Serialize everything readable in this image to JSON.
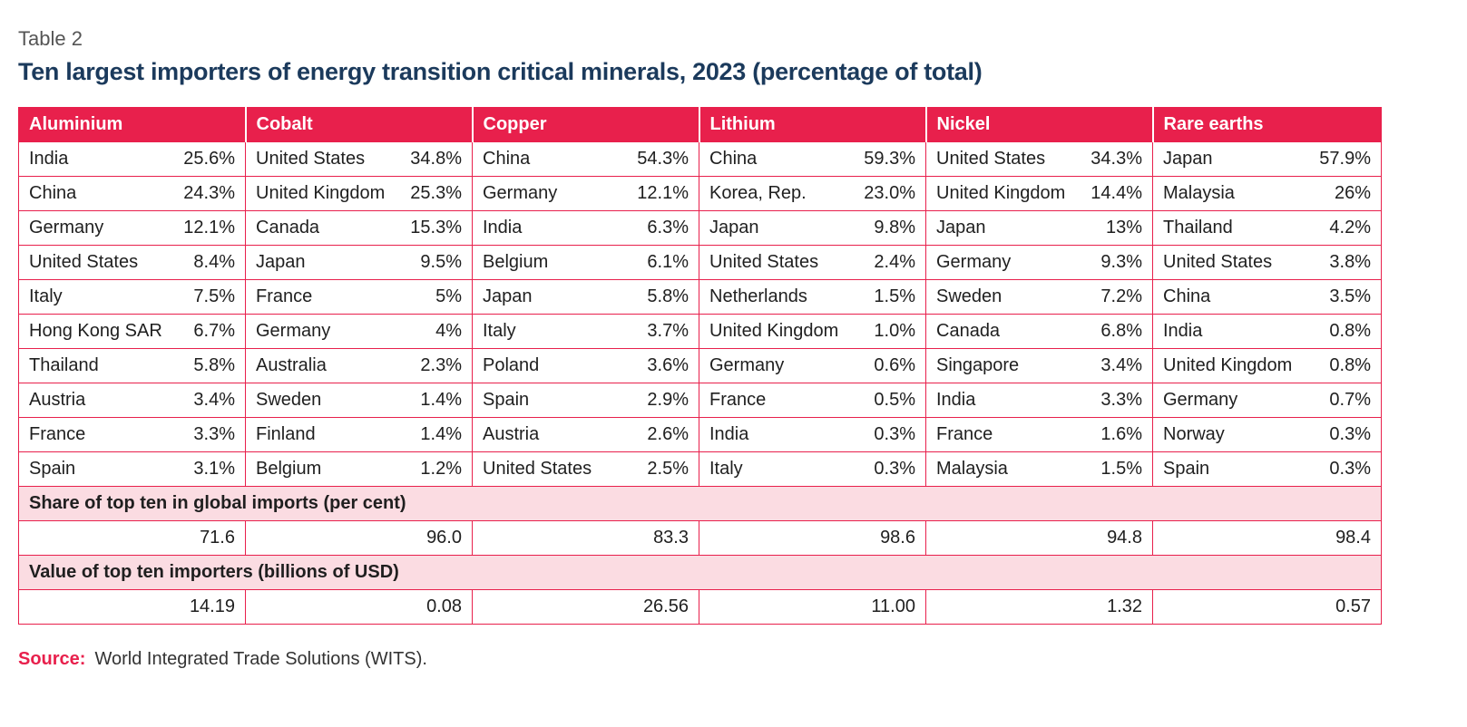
{
  "label": "Table 2",
  "title": "Ten largest importers of energy transition critical minerals, 2023 (percentage of total)",
  "columns": [
    "Aluminium",
    "Cobalt",
    "Copper",
    "Lithium",
    "Nickel",
    "Rare earths"
  ],
  "rows": [
    [
      [
        "India",
        "25.6%"
      ],
      [
        "United States",
        "34.8%"
      ],
      [
        "China",
        "54.3%"
      ],
      [
        "China",
        "59.3%"
      ],
      [
        "United States",
        "34.3%"
      ],
      [
        "Japan",
        "57.9%"
      ]
    ],
    [
      [
        "China",
        "24.3%"
      ],
      [
        "United Kingdom",
        "25.3%"
      ],
      [
        "Germany",
        "12.1%"
      ],
      [
        "Korea, Rep.",
        "23.0%"
      ],
      [
        "United Kingdom",
        "14.4%"
      ],
      [
        "Malaysia",
        "26%"
      ]
    ],
    [
      [
        "Germany",
        "12.1%"
      ],
      [
        "Canada",
        "15.3%"
      ],
      [
        "India",
        "6.3%"
      ],
      [
        "Japan",
        "9.8%"
      ],
      [
        "Japan",
        "13%"
      ],
      [
        "Thailand",
        "4.2%"
      ]
    ],
    [
      [
        "United States",
        "8.4%"
      ],
      [
        "Japan",
        "9.5%"
      ],
      [
        "Belgium",
        "6.1%"
      ],
      [
        "United States",
        "2.4%"
      ],
      [
        "Germany",
        "9.3%"
      ],
      [
        "United States",
        "3.8%"
      ]
    ],
    [
      [
        "Italy",
        "7.5%"
      ],
      [
        "France",
        "5%"
      ],
      [
        "Japan",
        "5.8%"
      ],
      [
        "Netherlands",
        "1.5%"
      ],
      [
        "Sweden",
        "7.2%"
      ],
      [
        "China",
        "3.5%"
      ]
    ],
    [
      [
        "Hong Kong SAR",
        "6.7%"
      ],
      [
        "Germany",
        "4%"
      ],
      [
        "Italy",
        "3.7%"
      ],
      [
        "United Kingdom",
        "1.0%"
      ],
      [
        "Canada",
        "6.8%"
      ],
      [
        "India",
        "0.8%"
      ]
    ],
    [
      [
        "Thailand",
        "5.8%"
      ],
      [
        "Australia",
        "2.3%"
      ],
      [
        "Poland",
        "3.6%"
      ],
      [
        "Germany",
        "0.6%"
      ],
      [
        "Singapore",
        "3.4%"
      ],
      [
        "United Kingdom",
        "0.8%"
      ]
    ],
    [
      [
        "Austria",
        "3.4%"
      ],
      [
        "Sweden",
        "1.4%"
      ],
      [
        "Spain",
        "2.9%"
      ],
      [
        "France",
        "0.5%"
      ],
      [
        "India",
        "3.3%"
      ],
      [
        "Germany",
        "0.7%"
      ]
    ],
    [
      [
        "France",
        "3.3%"
      ],
      [
        "Finland",
        "1.4%"
      ],
      [
        "Austria",
        "2.6%"
      ],
      [
        "India",
        "0.3%"
      ],
      [
        "France",
        "1.6%"
      ],
      [
        "Norway",
        "0.3%"
      ]
    ],
    [
      [
        "Spain",
        "3.1%"
      ],
      [
        "Belgium",
        "1.2%"
      ],
      [
        "United States",
        "2.5%"
      ],
      [
        "Italy",
        "0.3%"
      ],
      [
        "Malaysia",
        "1.5%"
      ],
      [
        "Spain",
        "0.3%"
      ]
    ]
  ],
  "share_section": {
    "label": "Share of top ten in global imports (per cent)",
    "values": [
      "71.6",
      "96.0",
      "83.3",
      "98.6",
      "94.8",
      "98.4"
    ]
  },
  "value_section": {
    "label": "Value of top ten importers (billions of USD)",
    "values": [
      "14.19",
      "0.08",
      "26.56",
      "11.00",
      "1.32",
      "0.57"
    ]
  },
  "source": {
    "label": "Source:",
    "text": "World Integrated Trade Solutions (WITS)."
  },
  "colors": {
    "accent": "#e8204c",
    "title": "#1b3a5c",
    "section_bg": "#fbdce2"
  }
}
